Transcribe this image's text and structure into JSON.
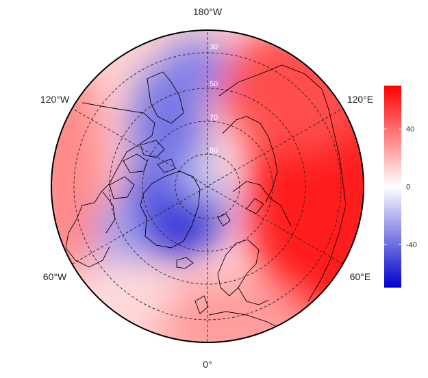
{
  "map": {
    "projection": "north-polar-stereographic",
    "longitude_labels": {
      "top": "180°W",
      "upper_left": "120°W",
      "upper_right": "120°E",
      "lower_left": "60°W",
      "lower_right": "60°E",
      "bottom": "0°"
    },
    "latitude_labels": [
      "30",
      "50",
      "70",
      "80"
    ],
    "graticule": "dashed",
    "colors": {
      "max_red": "#ff0000",
      "mid_white": "#ffffff",
      "min_blue": "#0000cc",
      "coastline": "#000000"
    }
  },
  "colorbar": {
    "ticks": [
      "40",
      "0",
      "-40"
    ],
    "tick_values": [
      40,
      0,
      -40
    ],
    "range": [
      -70,
      70
    ],
    "colors": [
      "#0000cc",
      "#ffffff",
      "#ff0000"
    ]
  }
}
